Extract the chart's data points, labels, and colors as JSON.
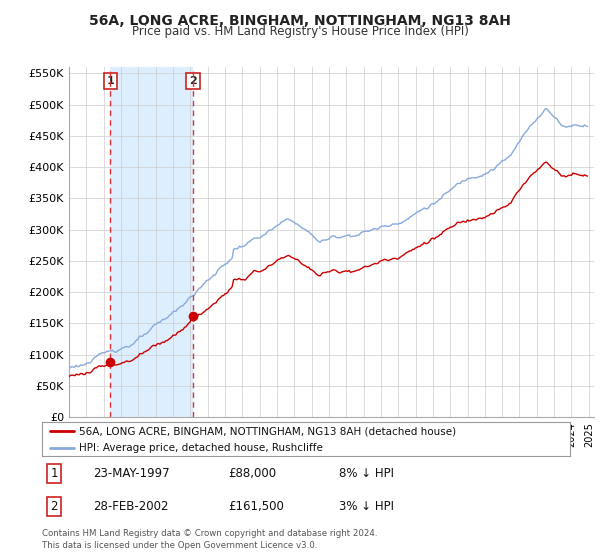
{
  "title": "56A, LONG ACRE, BINGHAM, NOTTINGHAM, NG13 8AH",
  "subtitle": "Price paid vs. HM Land Registry's House Price Index (HPI)",
  "background_color": "#ffffff",
  "plot_bg_color": "#ffffff",
  "ylim": [
    0,
    560000
  ],
  "yticks": [
    0,
    50000,
    100000,
    150000,
    200000,
    250000,
    300000,
    350000,
    400000,
    450000,
    500000,
    550000
  ],
  "ytick_labels": [
    "£0",
    "£50K",
    "£100K",
    "£150K",
    "£200K",
    "£250K",
    "£300K",
    "£350K",
    "£400K",
    "£450K",
    "£500K",
    "£550K"
  ],
  "legend_line1": "56A, LONG ACRE, BINGHAM, NOTTINGHAM, NG13 8AH (detached house)",
  "legend_line2": "HPI: Average price, detached house, Rushcliffe",
  "table_row1": [
    "1",
    "23-MAY-1997",
    "£88,000",
    "8% ↓ HPI"
  ],
  "table_row2": [
    "2",
    "28-FEB-2002",
    "£161,500",
    "3% ↓ HPI"
  ],
  "footnote": "Contains HM Land Registry data © Crown copyright and database right 2024.\nThis data is licensed under the Open Government Licence v3.0.",
  "marker1_date": 1997.38,
  "marker1_value": 88000,
  "marker2_date": 2002.16,
  "marker2_value": 161500,
  "vline1_date": 1997.38,
  "vline2_date": 2002.16,
  "hpi_color": "#88aadd",
  "price_color": "#cc0000",
  "vline_color": "#dd3333",
  "shade_color": "#ddeeff",
  "grid_color": "#cccccc"
}
